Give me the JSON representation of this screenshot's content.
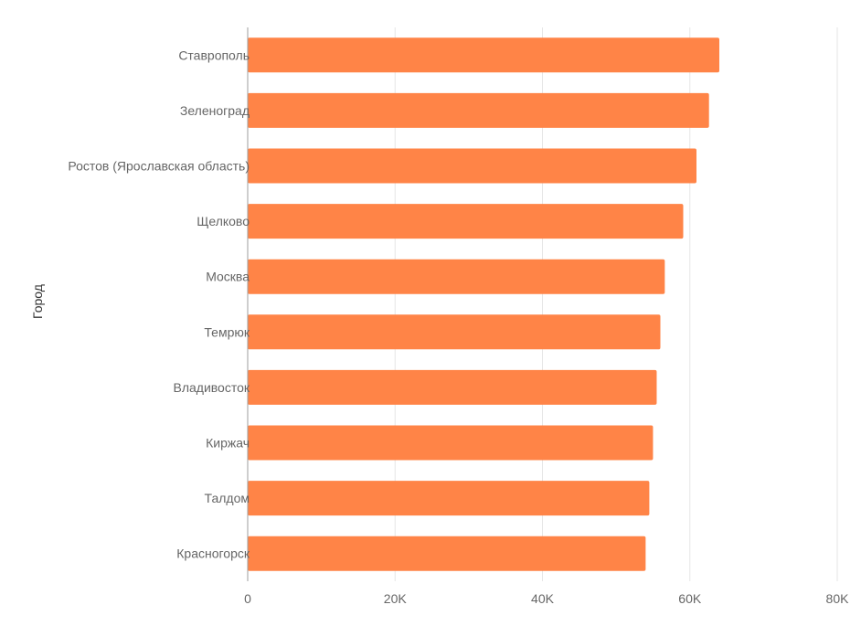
{
  "chart_data": {
    "type": "bar",
    "orientation": "horizontal",
    "title": "",
    "xlabel": "",
    "ylabel": "Город",
    "categories": [
      "Ставрополь",
      "Зеленоград",
      "Ростов (Ярославская область)",
      "Щелково",
      "Москва",
      "Темрюк",
      "Владивосток",
      "Киржач",
      "Талдом",
      "Красногорск"
    ],
    "values": [
      64000,
      62600,
      60900,
      59100,
      56600,
      56000,
      55500,
      55000,
      54500,
      54000
    ],
    "xlim": [
      0,
      80000
    ],
    "x_ticks": [
      0,
      20000,
      40000,
      60000,
      80000
    ],
    "x_tick_labels": [
      "0",
      "20K",
      "40K",
      "60K",
      "80K"
    ],
    "grid": true,
    "legend": "none",
    "colors": {
      "bar": "#FF8447",
      "grid": "#E6E6E6",
      "axis": "#9E9E9E",
      "label": "#666666",
      "title": "#333333"
    }
  }
}
